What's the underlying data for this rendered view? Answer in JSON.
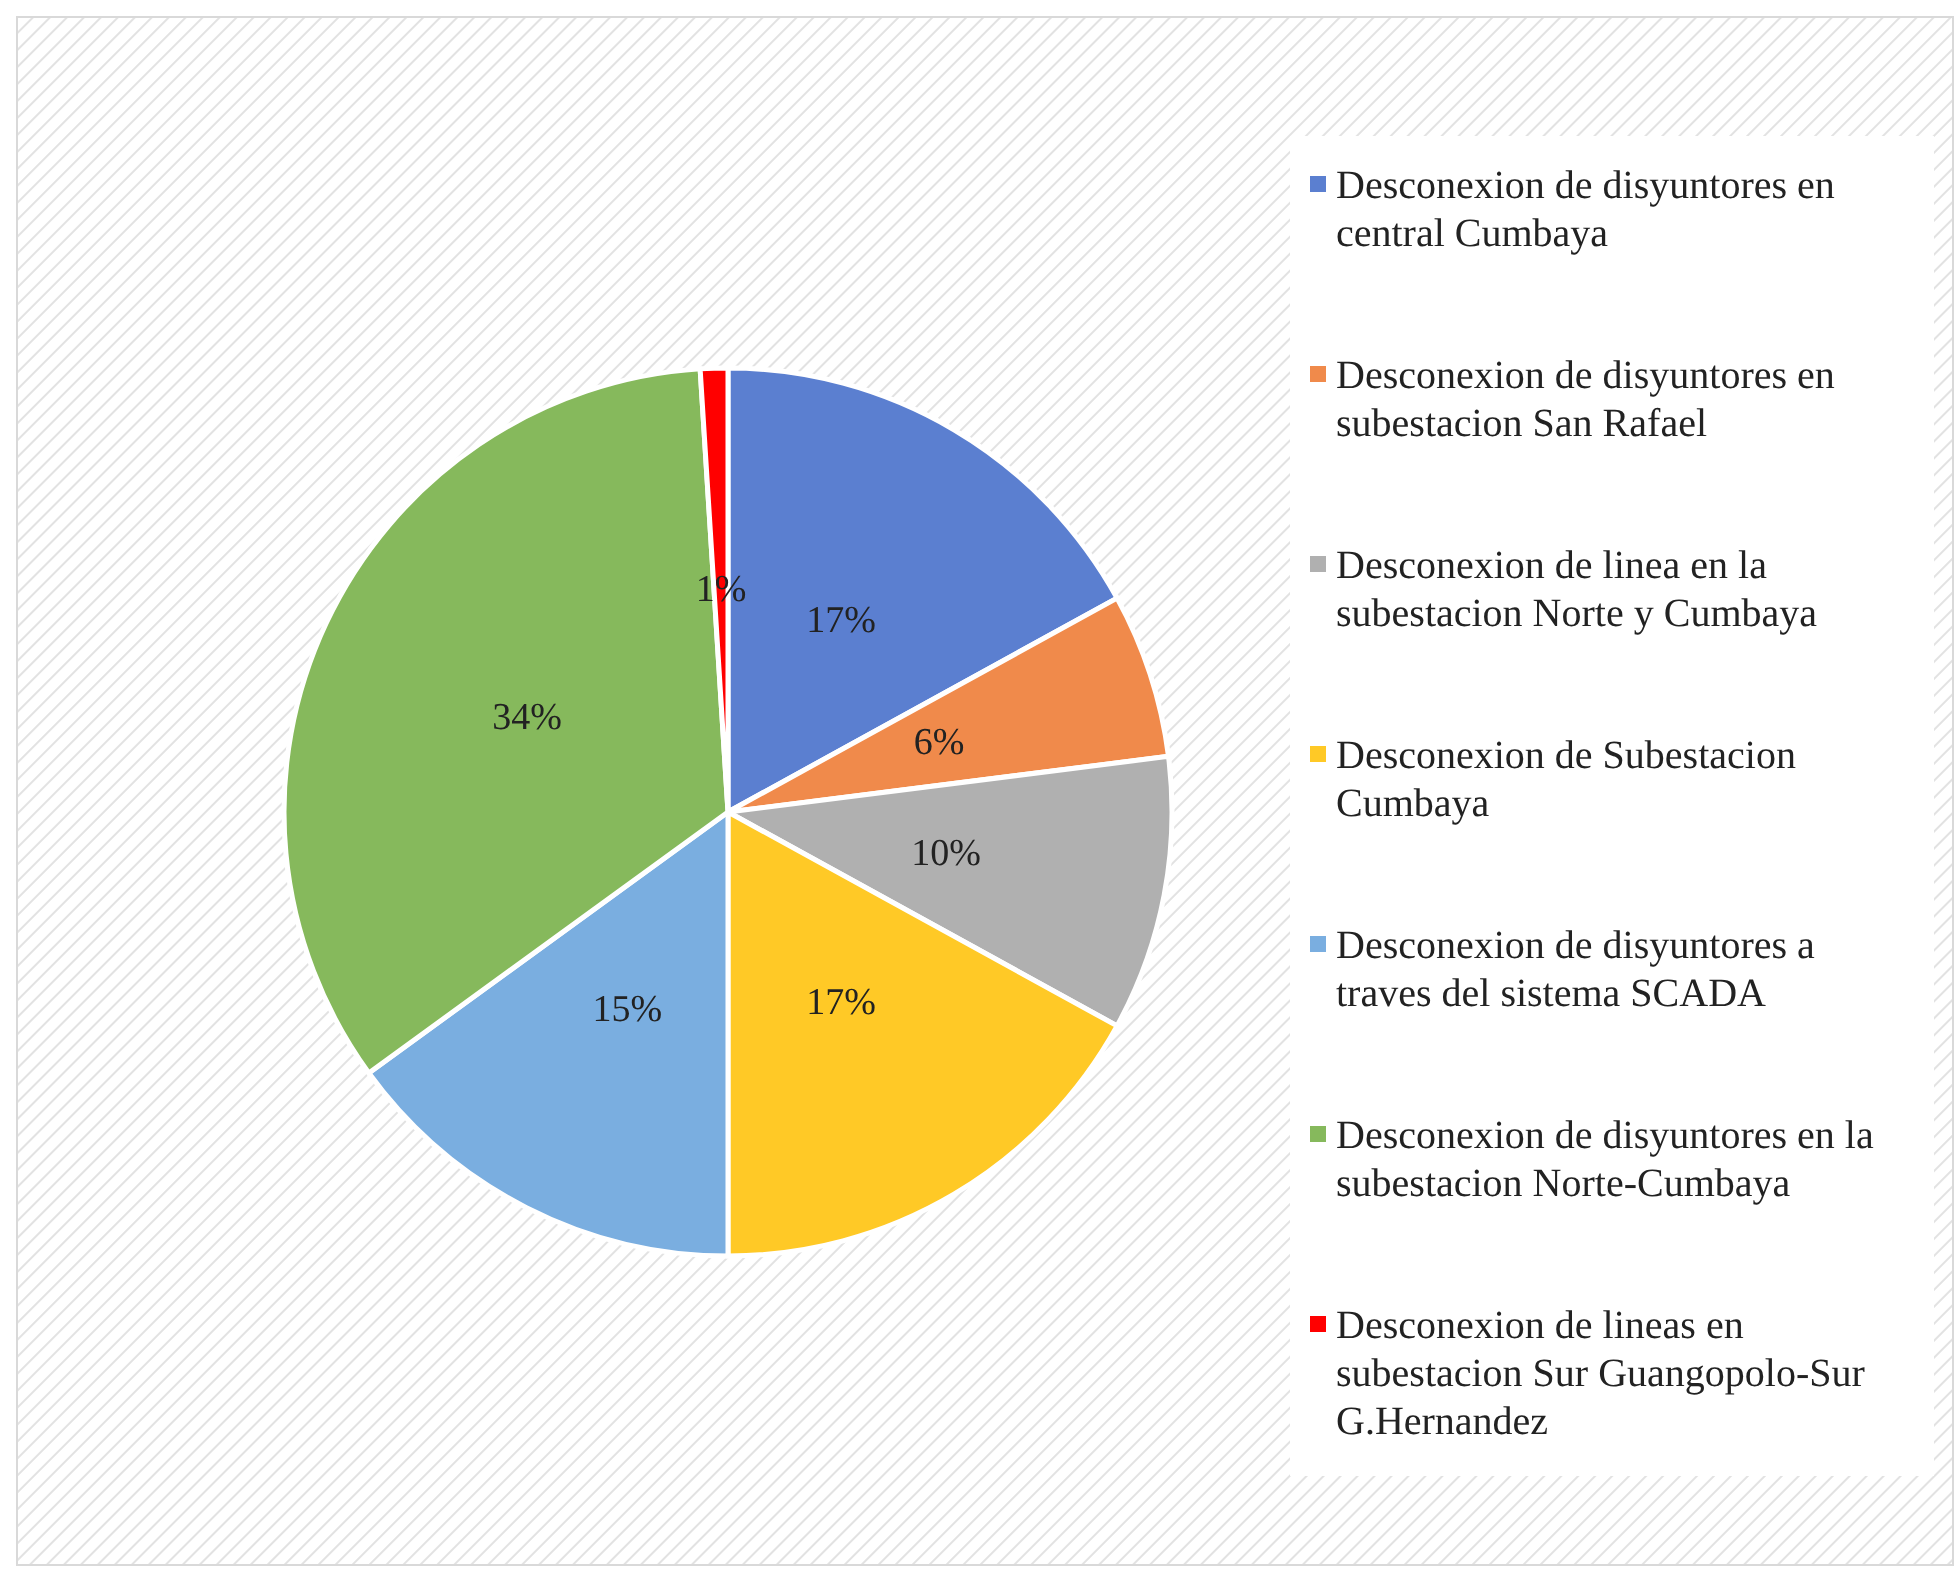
{
  "chart_data": {
    "type": "pie",
    "categories": [
      "Desconexion de disyuntores en central Cumbaya",
      "Desconexion de disyuntores en subestacion San Rafael",
      "Desconexion de linea en la subestacion Norte y Cumbaya",
      "Desconexion de Subestacion Cumbaya",
      "Desconexion de disyuntores a traves del sistema SCADA",
      "Desconexion de disyuntores en la subestacion Norte-Cumbaya",
      "Desconexion de lineas en subestacion Sur Guangopolo-Sur G.Hernandez"
    ],
    "values": [
      17,
      6,
      10,
      17,
      15,
      34,
      1
    ],
    "colors": [
      "#5b7fd0",
      "#f08a4b",
      "#b0b0b0",
      "#ffc926",
      "#7aaee0",
      "#86b95c",
      "#ff0000"
    ],
    "value_labels": [
      "17%",
      "6%",
      "10%",
      "17%",
      "15%",
      "34%",
      "1%"
    ],
    "legend": "right"
  }
}
